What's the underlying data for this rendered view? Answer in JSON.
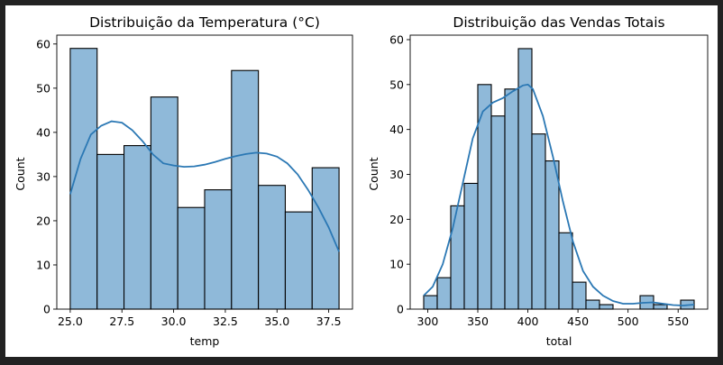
{
  "chart_data": [
    {
      "type": "bar",
      "title": "Distribuição da Temperatura (°C)",
      "xlabel": "temp",
      "ylabel": "Count",
      "bin_edges": [
        25.0,
        26.3,
        27.6,
        28.9,
        30.2,
        31.5,
        32.8,
        34.1,
        35.4,
        36.7,
        38.0
      ],
      "values": [
        59,
        35,
        37,
        48,
        23,
        27,
        54,
        28,
        22,
        32
      ],
      "xlim": [
        24.35,
        38.65
      ],
      "ylim": [
        0,
        62
      ],
      "xticks": [
        25.0,
        27.5,
        30.0,
        32.5,
        35.0,
        37.5
      ],
      "xtick_labels": [
        "25.0",
        "27.5",
        "30.0",
        "32.5",
        "35.0",
        "37.5"
      ],
      "yticks": [
        0,
        10,
        20,
        30,
        40,
        50,
        60
      ],
      "ytick_labels": [
        "0",
        "10",
        "20",
        "30",
        "40",
        "50",
        "60"
      ],
      "kde": {
        "x": [
          25.0,
          25.5,
          26.0,
          26.5,
          27.0,
          27.5,
          28.0,
          28.5,
          29.0,
          29.5,
          30.0,
          30.5,
          31.0,
          31.5,
          32.0,
          32.5,
          33.0,
          33.5,
          34.0,
          34.5,
          35.0,
          35.5,
          36.0,
          36.5,
          37.0,
          37.5,
          38.0
        ],
        "y": [
          26,
          34,
          39.5,
          41.5,
          42.5,
          42.2,
          40.5,
          38,
          35,
          33,
          32.5,
          32.2,
          32.3,
          32.7,
          33.3,
          34,
          34.6,
          35.1,
          35.4,
          35.2,
          34.5,
          33,
          30.5,
          27,
          23,
          18.5,
          13
        ]
      },
      "colors": {
        "bar": "#8fb9d9",
        "line": "#2b78b4"
      }
    },
    {
      "type": "bar",
      "title": "Distribuição das Vendas Totais",
      "xlabel": "total",
      "ylabel": "Count",
      "bin_edges": [
        296,
        309.5,
        323,
        336.5,
        350,
        363.5,
        377,
        390.5,
        404,
        417.5,
        431,
        444.5,
        458,
        471.5,
        485,
        498.5,
        512,
        525.5,
        539,
        552.5,
        566
      ],
      "values": [
        3,
        7,
        23,
        28,
        50,
        43,
        49,
        58,
        39,
        33,
        17,
        6,
        2,
        1,
        0,
        0,
        3,
        1,
        0,
        2
      ],
      "xlim": [
        282.5,
        579.5
      ],
      "ylim": [
        0,
        61
      ],
      "xticks": [
        300,
        350,
        400,
        450,
        500,
        550
      ],
      "xtick_labels": [
        "300",
        "350",
        "400",
        "450",
        "500",
        "550"
      ],
      "yticks": [
        0,
        10,
        20,
        30,
        40,
        50,
        60
      ],
      "ytick_labels": [
        "0",
        "10",
        "20",
        "30",
        "40",
        "50",
        "60"
      ],
      "kde": {
        "x": [
          296,
          305,
          315,
          325,
          335,
          345,
          355,
          365,
          375,
          385,
          395,
          400,
          405,
          415,
          425,
          435,
          445,
          455,
          465,
          475,
          485,
          495,
          505,
          515,
          525,
          535,
          545,
          555,
          566
        ],
        "y": [
          3,
          5,
          10,
          18,
          28,
          38,
          44,
          46,
          47,
          48.5,
          49.8,
          50,
          49,
          43,
          34,
          24,
          15,
          8.5,
          5,
          3,
          1.8,
          1.2,
          1.2,
          1.4,
          1.5,
          1.2,
          0.9,
          0.8,
          1
        ]
      },
      "colors": {
        "bar": "#8fb9d9",
        "line": "#2b78b4"
      }
    }
  ]
}
